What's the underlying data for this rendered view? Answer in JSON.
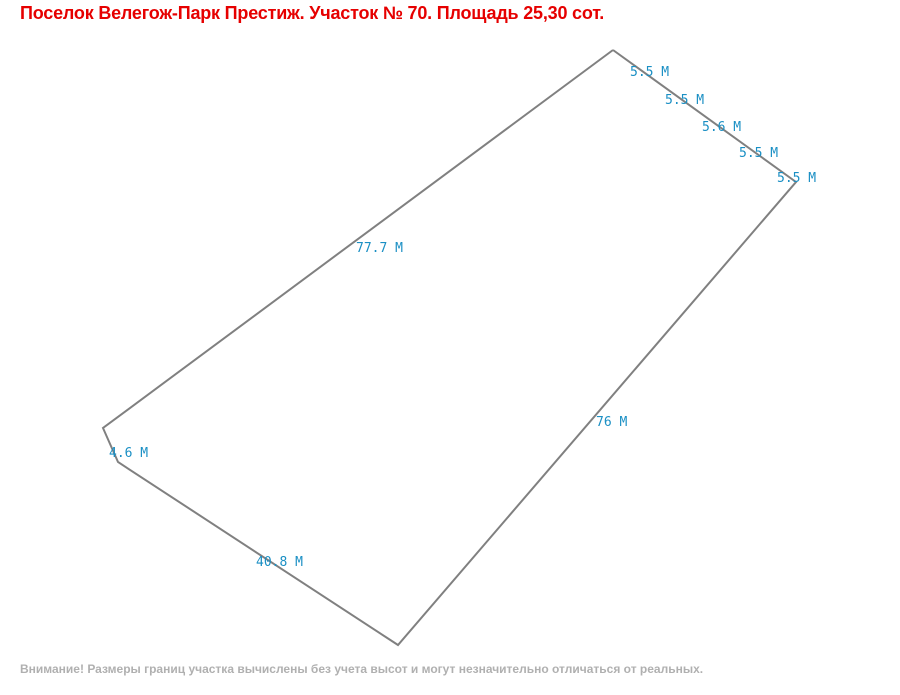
{
  "title": "Поселок Велегож-Парк Престиж. Участок № 70. Площадь 25,30 сот.",
  "plot": {
    "line_color": "#808080",
    "label_color": "#1a8fc4",
    "dimensions": [
      "5.5 М",
      "5.5 М",
      "5.6 М",
      "5.5 М",
      "5.5 М",
      "77.7 М",
      "4.6 М",
      "40.8 М",
      "76 М"
    ]
  },
  "footer": "Внимание! Размеры границ участка вычислены без учета высот и могут незначительно отличаться от реальных."
}
